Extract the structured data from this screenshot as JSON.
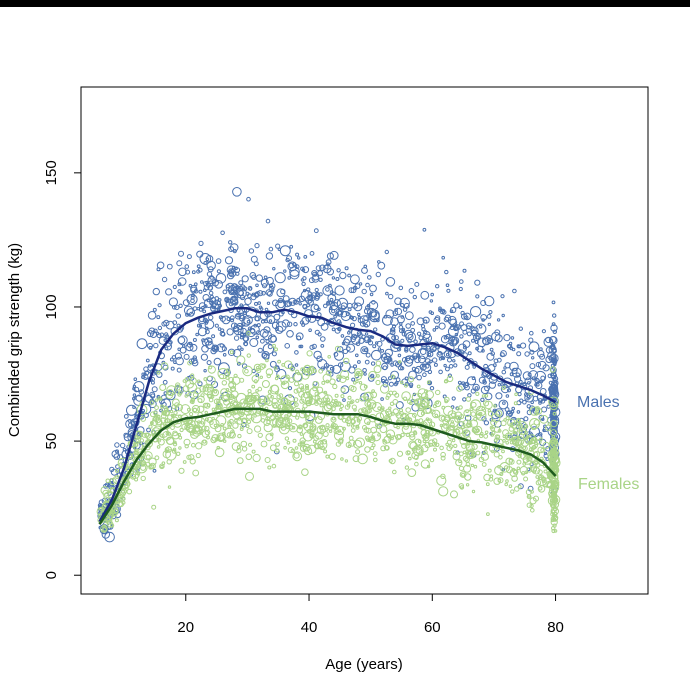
{
  "chart_data": {
    "type": "scatter",
    "title": "",
    "xlabel": "Age (years)",
    "ylabel": "Combinded grip strength (kg)",
    "xlim": [
      3,
      95
    ],
    "ylim": [
      -7,
      182
    ],
    "xticks": [
      20,
      40,
      60,
      80
    ],
    "yticks": [
      0,
      50,
      100,
      150
    ],
    "grid": false,
    "legend": "direct labels at right of series",
    "series": [
      {
        "name": "Males",
        "color": "#4a72b0",
        "fit_color": "#1a2a80",
        "fit_x": [
          6,
          8,
          10,
          12,
          14,
          16,
          18,
          20,
          22,
          24,
          26,
          28,
          30,
          32,
          34,
          36,
          38,
          40,
          42,
          44,
          46,
          48,
          50,
          52,
          54,
          56,
          58,
          60,
          62,
          64,
          66,
          68,
          70,
          72,
          74,
          76,
          78,
          80
        ],
        "fit_y": [
          20,
          28,
          40,
          56,
          72,
          84,
          90,
          94,
          96,
          97.5,
          98.5,
          99.5,
          99.5,
          98,
          98,
          99,
          98,
          96.5,
          96,
          94,
          92.5,
          91.5,
          91,
          89,
          86,
          85.5,
          86,
          86.5,
          85,
          83,
          80,
          77,
          74.5,
          72,
          70.5,
          69,
          67,
          64.5
        ],
        "scatter_x_range": [
          6,
          80
        ],
        "scatter_y_spread": 13
      },
      {
        "name": "Females",
        "color": "#a9d487",
        "fit_color": "#1f5c1f",
        "fit_x": [
          6,
          8,
          10,
          12,
          14,
          16,
          18,
          20,
          22,
          24,
          26,
          28,
          30,
          32,
          34,
          36,
          38,
          40,
          42,
          44,
          46,
          48,
          50,
          52,
          54,
          56,
          58,
          60,
          62,
          64,
          66,
          68,
          70,
          72,
          74,
          76,
          78,
          80
        ],
        "fit_y": [
          19,
          26,
          35,
          43,
          49,
          54,
          57,
          58.5,
          59,
          60,
          61,
          62,
          62,
          62,
          61,
          61,
          61,
          61,
          60.5,
          60,
          60,
          60,
          59,
          57.5,
          56.5,
          56.5,
          56,
          54.5,
          53,
          51.5,
          50,
          49.5,
          48.5,
          47.5,
          46.5,
          45,
          42,
          37
        ],
        "scatter_x_range": [
          6,
          80
        ],
        "scatter_y_spread": 9
      }
    ]
  }
}
